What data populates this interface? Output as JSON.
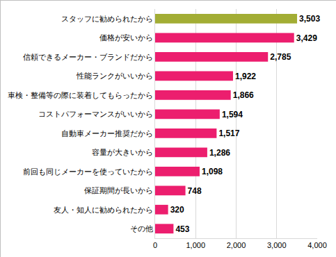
{
  "chart_data": {
    "type": "bar",
    "orientation": "horizontal",
    "categories": [
      "スタッフに勧められたから",
      "価格が安いから",
      "信頼できるメーカー・ブランドだから",
      "性能ランクがいいから",
      "車検・整備等の際に装着してもらったから",
      "コストパフォーマンスがいいから",
      "自動車メーカー推奨だから",
      "容量が大きいから",
      "前回も同じメーカーを使っていたから",
      "保証期間が長いから",
      "友人・知人に勧められたから",
      "その他"
    ],
    "values": [
      3503,
      3429,
      2785,
      1922,
      1866,
      1594,
      1517,
      1286,
      1098,
      748,
      320,
      453
    ],
    "value_labels": [
      "3,503",
      "3,429",
      "2,785",
      "1,922",
      "1,866",
      "1,594",
      "1,517",
      "1,286",
      "1,098",
      "748",
      "320",
      "453"
    ],
    "data_labels": true,
    "colors": [
      "#a2ad34",
      "#ec1e6e",
      "#ec1e6e",
      "#ec1e6e",
      "#ec1e6e",
      "#ec1e6e",
      "#ec1e6e",
      "#ec1e6e",
      "#ec1e6e",
      "#ec1e6e",
      "#ec1e6e",
      "#ec1e6e"
    ],
    "xlim": [
      0,
      4000
    ],
    "xticks": [
      0,
      {
        "value": 1000,
        "label": "1,000"
      },
      {
        "value": 2000,
        "label": "2,000"
      },
      {
        "value": 3000,
        "label": "3,000"
      },
      {
        "value": 4000,
        "label": "4,000"
      }
    ],
    "grid": true
  }
}
